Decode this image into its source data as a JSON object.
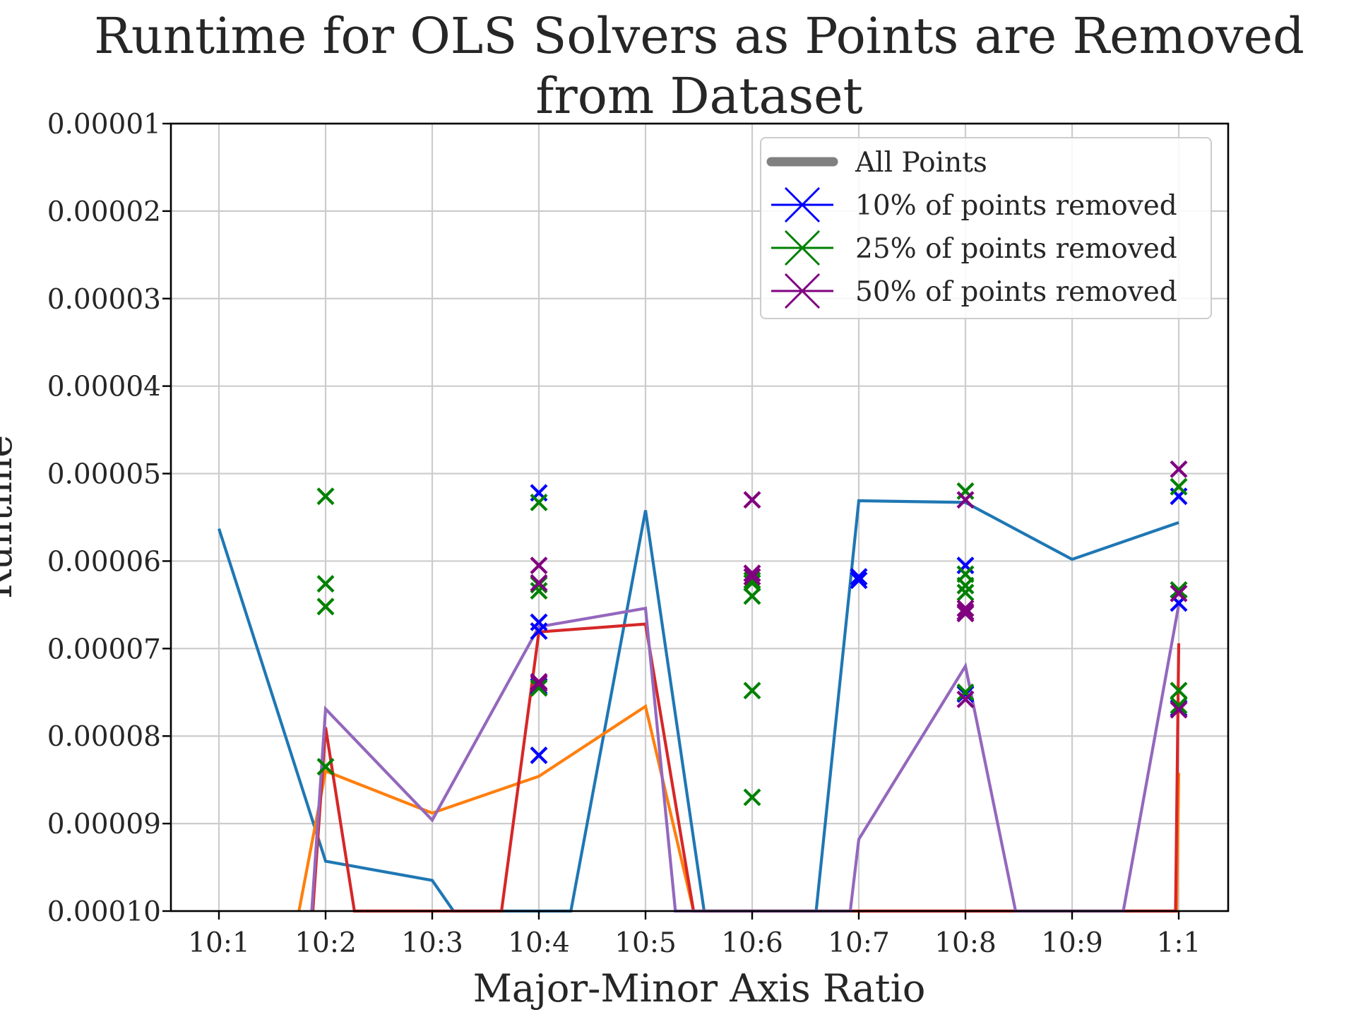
{
  "chart_data": {
    "type": "line",
    "title_lines": [
      "Runtime for OLS Solvers as Points are Removed",
      "from Dataset"
    ],
    "xlabel": "Major-Minor Axis Ratio",
    "ylabel": "Runtime",
    "categories": [
      "10:1",
      "10:2",
      "10:3",
      "10:4",
      "10:5",
      "10:6",
      "10:7",
      "10:8",
      "10:9",
      "1:1"
    ],
    "y_tick_labels": [
      "0.00001",
      "0.00002",
      "0.00003",
      "0.00004",
      "0.00005",
      "0.00006",
      "0.00007",
      "0.00008",
      "0.00009",
      "0.00010"
    ],
    "y_axis_inverted": true,
    "ylim": [
      1e-05,
      0.0001
    ],
    "grid": true,
    "legend_position": "top-right",
    "legend": [
      {
        "label": "All Points",
        "color": "#808080",
        "marker": "line"
      },
      {
        "label": "10% of points removed",
        "color": "#0000ff",
        "marker": "x"
      },
      {
        "label": "25% of points removed",
        "color": "#008000",
        "marker": "x"
      },
      {
        "label": "50% of points removed",
        "color": "#800080",
        "marker": "x"
      }
    ],
    "series": [
      {
        "color": "#1f77b4",
        "x": [
          0,
          1,
          2,
          2.2,
          3.3,
          4,
          4.55,
          5.6,
          6,
          7,
          8,
          9
        ],
        "y": [
          5.63e-05,
          9.43e-05,
          9.65e-05,
          0.0001,
          0.0001,
          5.42e-05,
          0.0001,
          0.0001,
          5.31e-05,
          5.33e-05,
          5.98e-05,
          5.56e-05
        ]
      },
      {
        "color": "#ff7f0e",
        "x": [
          0.75,
          1,
          2,
          3,
          4,
          4.45,
          8.98,
          9
        ],
        "y": [
          0.0001,
          8.4e-05,
          8.88e-05,
          8.46e-05,
          7.66e-05,
          0.0001,
          0.0001,
          8.42e-05
        ]
      },
      {
        "color": "#d62728",
        "x": [
          0.88,
          1,
          1.27,
          2.65,
          3,
          4,
          4.45,
          8.97,
          9
        ],
        "y": [
          0.0001,
          7.9e-05,
          0.0001,
          0.0001,
          6.81e-05,
          6.72e-05,
          0.0001,
          0.0001,
          6.94e-05
        ]
      },
      {
        "color": "#9467bd",
        "x": [
          0.87,
          1,
          2,
          3,
          4,
          4.28,
          5.92,
          6,
          7,
          7.47,
          8.48,
          9
        ],
        "y": [
          0.0001,
          7.69e-05,
          8.96e-05,
          6.75e-05,
          6.54e-05,
          0.0001,
          0.0001,
          9.18e-05,
          7.2e-05,
          0.0001,
          0.0001,
          6.5e-05
        ]
      }
    ],
    "scatter": [
      {
        "name": "10% of points removed",
        "color": "#0000ff",
        "x": [
          3,
          3,
          3,
          3,
          3,
          6,
          6,
          7,
          7,
          9,
          9,
          9
        ],
        "y": [
          5.22e-05,
          6.7e-05,
          6.8e-05,
          8.22e-05,
          7.43e-05,
          6.18e-05,
          6.22e-05,
          6.05e-05,
          7.52e-05,
          5.26e-05,
          6.48e-05,
          7.68e-05
        ]
      },
      {
        "name": "25% of points removed",
        "color": "#008000",
        "x": [
          1,
          1,
          1,
          1,
          3,
          3,
          3,
          3,
          5,
          5,
          5,
          5,
          5,
          7,
          7,
          7,
          7,
          7,
          9,
          9,
          9,
          9
        ],
        "y": [
          5.26e-05,
          6.26e-05,
          6.52e-05,
          8.35e-05,
          5.33e-05,
          6.27e-05,
          6.34e-05,
          7.45e-05,
          6.22e-05,
          6.25e-05,
          6.4e-05,
          7.48e-05,
          8.7e-05,
          5.2e-05,
          6.15e-05,
          6.28e-05,
          6.36e-05,
          7.5e-05,
          5.15e-05,
          6.33e-05,
          7.48e-05,
          7.65e-05
        ]
      },
      {
        "name": "50% of points removed",
        "color": "#800080",
        "x": [
          3,
          3,
          3,
          3,
          5,
          5,
          5,
          7,
          7,
          7,
          7,
          7,
          9,
          9,
          9
        ],
        "y": [
          6.05e-05,
          6.25e-05,
          7.4e-05,
          7.38e-05,
          5.3e-05,
          6.14e-05,
          6.18e-05,
          5.3e-05,
          6.54e-05,
          6.58e-05,
          6.6e-05,
          7.58e-05,
          4.95e-05,
          6.37e-05,
          7.7e-05
        ]
      }
    ]
  }
}
